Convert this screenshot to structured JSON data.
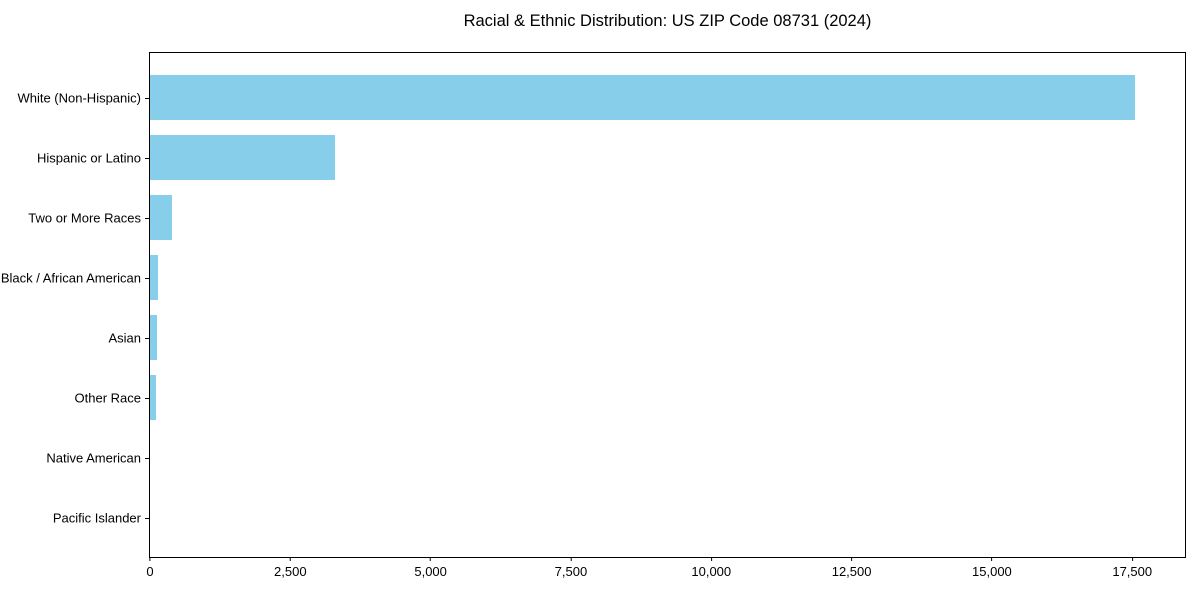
{
  "chart_data": {
    "type": "bar",
    "orientation": "horizontal",
    "title": "Racial & Ethnic Distribution: US ZIP Code 08731 (2024)",
    "categories": [
      "White (Non-Hispanic)",
      "Hispanic or Latino",
      "Two or More Races",
      "Black / African American",
      "Asian",
      "Other Race",
      "Native American",
      "Pacific Islander"
    ],
    "values": [
      17550,
      3300,
      400,
      135,
      130,
      110,
      0,
      0
    ],
    "xlabel": "",
    "ylabel": "",
    "xlim": [
      0,
      18440
    ],
    "xticks": [
      0,
      2500,
      5000,
      7500,
      10000,
      12500,
      15000,
      17500
    ],
    "xtick_labels": [
      "0",
      "2,500",
      "5,000",
      "7,500",
      "10,000",
      "12,500",
      "15,000",
      "17,500"
    ],
    "bar_color": "#87CEEB",
    "axis_color": "#000000",
    "background_color": "#ffffff",
    "grid": false,
    "legend": null
  }
}
